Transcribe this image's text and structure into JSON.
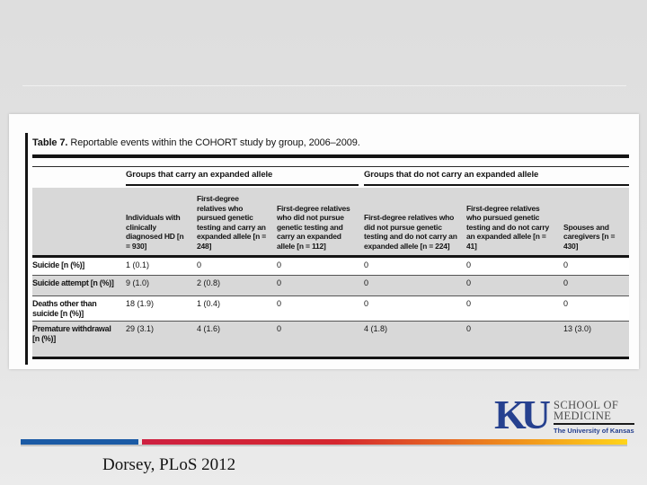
{
  "slide": {
    "citation": "Dorsey, PLoS 2012"
  },
  "figure": {
    "title_label": "Table 7.",
    "title_text": "Reportable events within the COHORT study by group, 2006–2009.",
    "group_headers": [
      "Groups that carry an expanded allele",
      "Groups that do not carry an expanded allele"
    ],
    "column_headers": [
      "Individuals with clinically diagnosed HD [n = 930]",
      "First-degree relatives who pursued genetic testing and carry an expanded allele [n = 248]",
      "First-degree relatives who did not pursue genetic testing and carry an expanded allele [n = 112]",
      "First-degree relatives who did not pursue genetic testing and do not carry an expanded allele [n = 224]",
      "First-degree relatives who pursued genetic testing and do not carry an expanded allele [n = 41]",
      "Spouses and caregivers [n = 430]"
    ],
    "rows": [
      {
        "label": "Suicide [n (%)]",
        "values": [
          "1 (0.1)",
          "0",
          "0",
          "0",
          "0",
          "0"
        ]
      },
      {
        "label": "Suicide attempt [n (%)]",
        "values": [
          "9 (1.0)",
          "2 (0.8)",
          "0",
          "0",
          "0",
          "0"
        ]
      },
      {
        "label": "Deaths other than suicide [n (%)]",
        "values": [
          "18 (1.9)",
          "1 (0.4)",
          "0",
          "0",
          "0",
          "0"
        ]
      },
      {
        "label": "Premature withdrawal [n (%)]",
        "values": [
          "29 (3.1)",
          "4 (1.6)",
          "0",
          "4 (1.8)",
          "0",
          "13 (3.0)"
        ]
      }
    ]
  },
  "logo": {
    "ku": "KU",
    "line1": "SCHOOL OF",
    "line2": "MEDICINE",
    "tagline": "The University of Kansas"
  },
  "colors": {
    "ku_blue": "#26418f",
    "bar_blue": "#1a5aa5",
    "bar_red": "#ce2040",
    "bar_orange": "#ee8a1d",
    "bar_yellow": "#ffd41a",
    "row_gray": "#d8d8d8",
    "table_black": "#141414"
  }
}
